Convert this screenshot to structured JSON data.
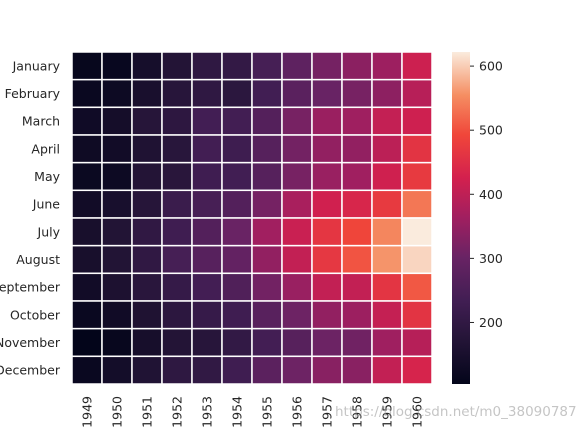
{
  "chart_data": {
    "type": "heatmap",
    "title": "",
    "xlabel": "",
    "ylabel": "",
    "x_categories": [
      "1949",
      "1950",
      "1951",
      "1952",
      "1953",
      "1954",
      "1955",
      "1956",
      "1957",
      "1958",
      "1959",
      "1960"
    ],
    "y_categories": [
      "January",
      "February",
      "March",
      "April",
      "May",
      "June",
      "July",
      "August",
      "September",
      "October",
      "November",
      "December"
    ],
    "values": [
      [
        112,
        115,
        145,
        171,
        196,
        204,
        242,
        284,
        315,
        340,
        360,
        417
      ],
      [
        118,
        126,
        150,
        180,
        196,
        188,
        233,
        277,
        301,
        318,
        342,
        391
      ],
      [
        132,
        141,
        178,
        193,
        236,
        235,
        267,
        317,
        356,
        362,
        406,
        419
      ],
      [
        129,
        135,
        163,
        181,
        235,
        227,
        269,
        313,
        348,
        348,
        396,
        461
      ],
      [
        121,
        125,
        172,
        183,
        229,
        234,
        270,
        318,
        355,
        363,
        420,
        472
      ],
      [
        135,
        149,
        178,
        218,
        243,
        264,
        315,
        374,
        422,
        435,
        472,
        535
      ],
      [
        148,
        170,
        199,
        230,
        264,
        302,
        364,
        413,
        465,
        491,
        548,
        622
      ],
      [
        148,
        170,
        199,
        242,
        272,
        293,
        347,
        405,
        467,
        505,
        559,
        606
      ],
      [
        136,
        158,
        184,
        209,
        237,
        259,
        312,
        355,
        404,
        404,
        463,
        508
      ],
      [
        119,
        133,
        162,
        191,
        211,
        229,
        274,
        306,
        347,
        359,
        407,
        461
      ],
      [
        104,
        114,
        146,
        172,
        180,
        203,
        237,
        271,
        305,
        310,
        362,
        390
      ],
      [
        118,
        140,
        166,
        194,
        201,
        229,
        278,
        306,
        336,
        337,
        405,
        432
      ]
    ],
    "colorbar": {
      "min": 104,
      "max": 622,
      "ticks": [
        200,
        300,
        400,
        500,
        600
      ],
      "colormap": "rocket"
    },
    "grid": "white cell separators"
  },
  "watermark": "https://blog.csdn.net/m0_38090787"
}
